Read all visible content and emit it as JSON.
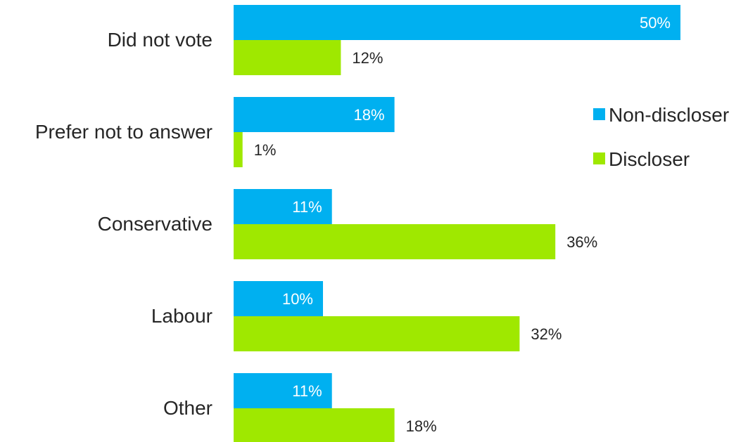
{
  "chart_data": {
    "type": "bar",
    "orientation": "horizontal",
    "categories": [
      "Did not vote",
      "Prefer not to answer",
      "Conservative",
      "Labour",
      "Other"
    ],
    "series": [
      {
        "name": "Non-discloser",
        "color": "#00B0F0",
        "values": [
          50,
          18,
          11,
          10,
          11
        ],
        "labels": [
          "50%",
          "18%",
          "11%",
          "10%",
          "11%"
        ]
      },
      {
        "name": "Discloser",
        "color": "#9FE800",
        "values": [
          12,
          1,
          36,
          32,
          18
        ],
        "labels": [
          "12%",
          "1%",
          "36%",
          "32%",
          "18%"
        ]
      }
    ],
    "unit": "%",
    "title": "",
    "xlabel": "",
    "ylabel": "",
    "xlim": [
      0,
      50
    ],
    "grid": false,
    "legend_position": "right"
  }
}
